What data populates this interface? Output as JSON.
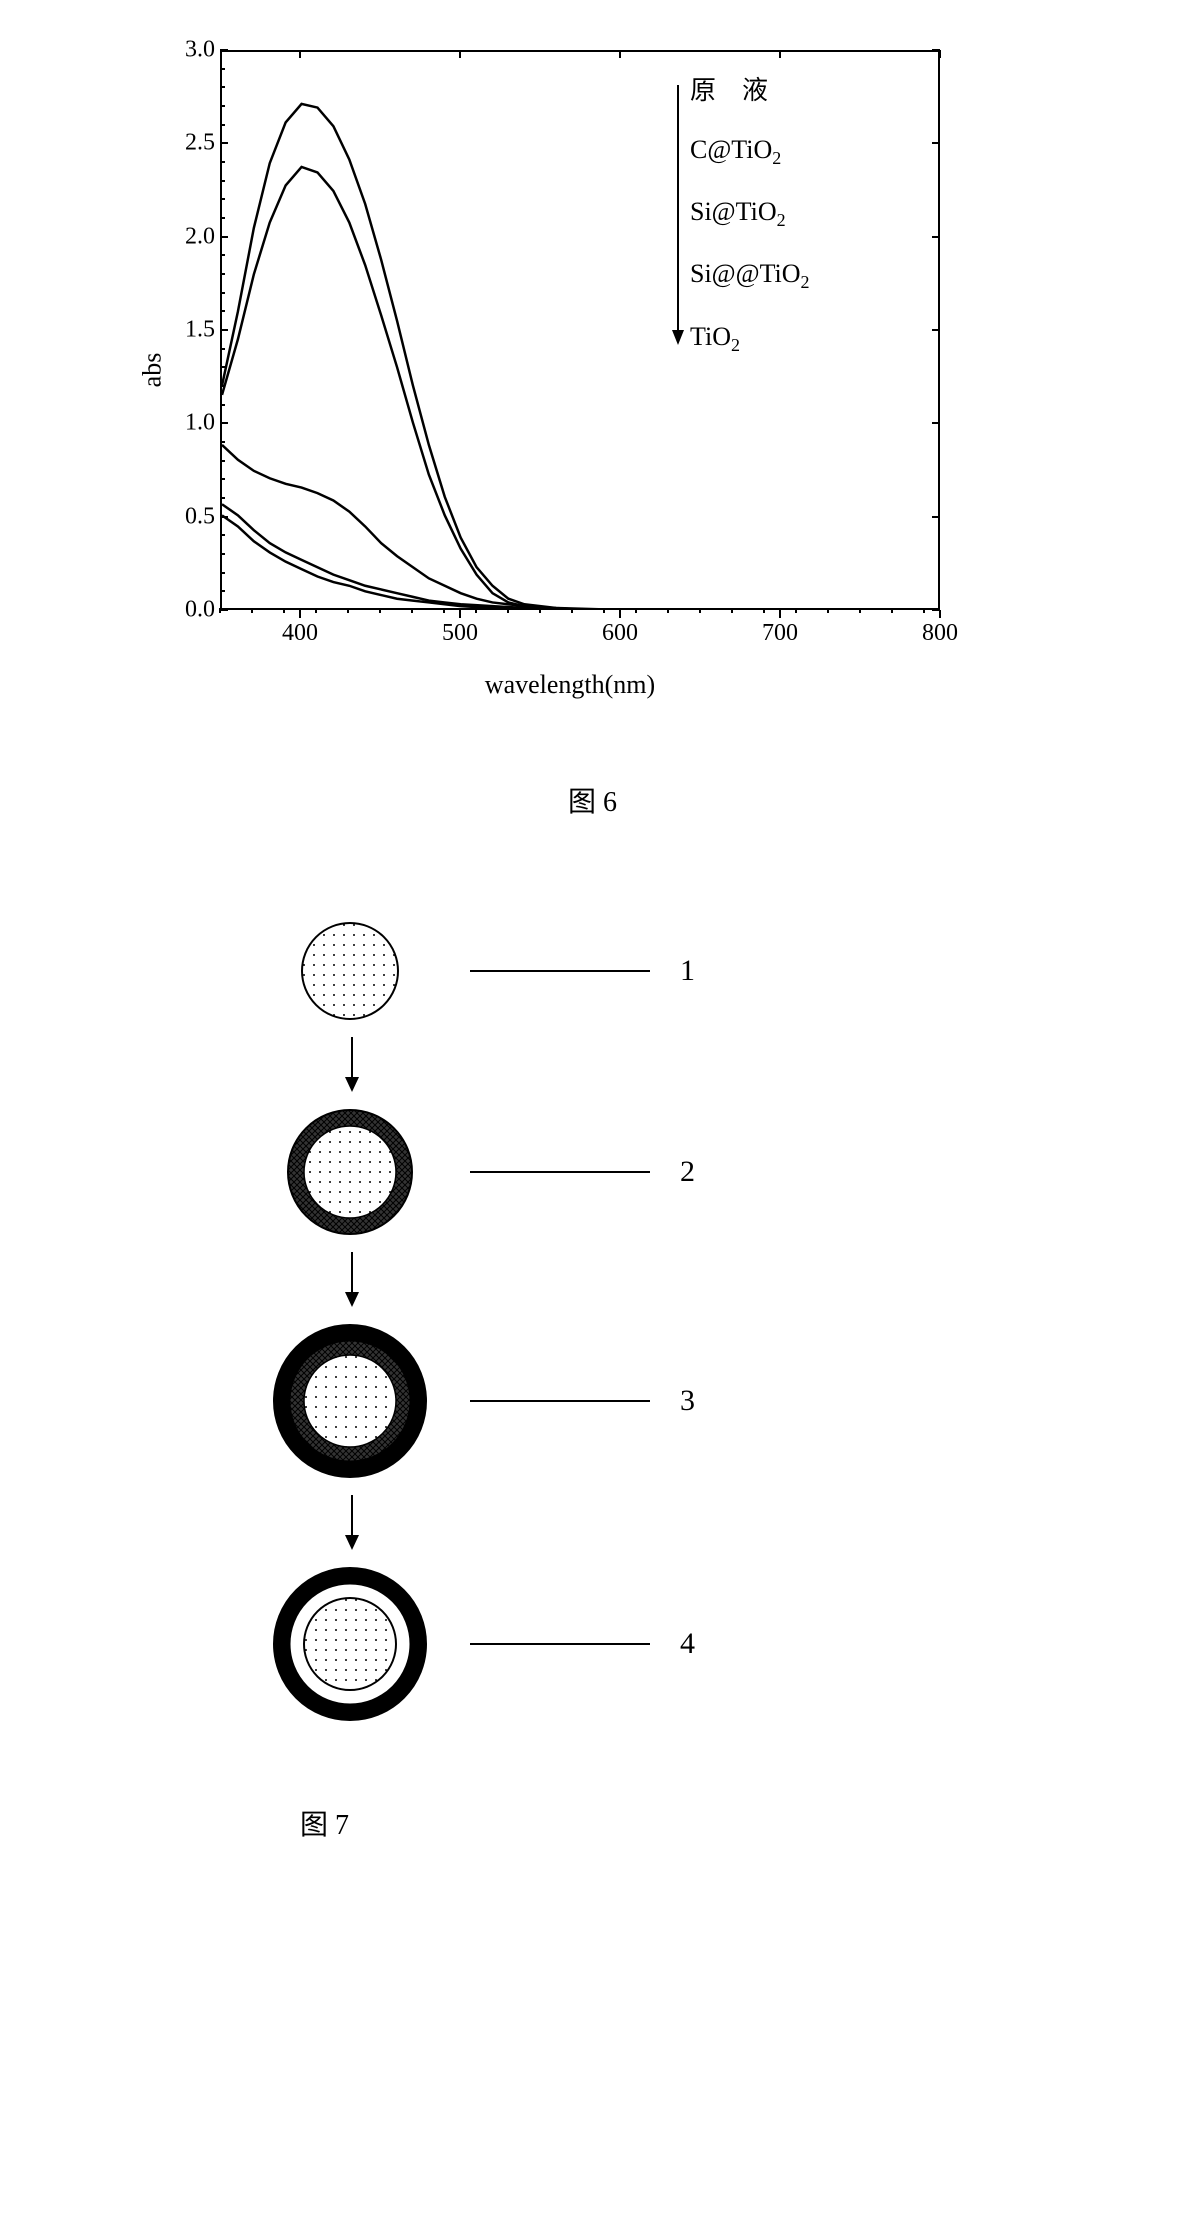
{
  "figure6": {
    "chart": {
      "type": "line",
      "xlabel": "wavelength(nm)",
      "ylabel": "abs",
      "label_fontsize": 26,
      "tick_fontsize": 24,
      "xlim": [
        350,
        800
      ],
      "ylim": [
        0.0,
        3.0
      ],
      "xticks": [
        400,
        500,
        600,
        700,
        800
      ],
      "yticks": [
        "0.0",
        "0.5",
        "1.0",
        "1.5",
        "2.0",
        "2.5",
        "3.0"
      ],
      "xtick_minor_step": 20,
      "ytick_minor_step": 0.1,
      "line_color": "#000000",
      "line_width": 2.5,
      "background_color": "#ffffff",
      "border_color": "#000000",
      "curves": [
        {
          "label": "原液",
          "points": [
            [
              350,
              1.2
            ],
            [
              360,
              1.6
            ],
            [
              370,
              2.05
            ],
            [
              380,
              2.4
            ],
            [
              390,
              2.62
            ],
            [
              400,
              2.72
            ],
            [
              410,
              2.7
            ],
            [
              420,
              2.6
            ],
            [
              430,
              2.42
            ],
            [
              440,
              2.18
            ],
            [
              450,
              1.88
            ],
            [
              460,
              1.55
            ],
            [
              470,
              1.2
            ],
            [
              480,
              0.88
            ],
            [
              490,
              0.6
            ],
            [
              500,
              0.38
            ],
            [
              510,
              0.22
            ],
            [
              520,
              0.12
            ],
            [
              530,
              0.05
            ],
            [
              540,
              0.02
            ],
            [
              560,
              0.0
            ],
            [
              600,
              -0.02
            ],
            [
              700,
              -0.03
            ],
            [
              800,
              -0.03
            ]
          ]
        },
        {
          "label": "C@TiO₂",
          "points": [
            [
              350,
              1.15
            ],
            [
              360,
              1.45
            ],
            [
              370,
              1.8
            ],
            [
              380,
              2.08
            ],
            [
              390,
              2.28
            ],
            [
              400,
              2.38
            ],
            [
              410,
              2.35
            ],
            [
              420,
              2.25
            ],
            [
              430,
              2.08
            ],
            [
              440,
              1.85
            ],
            [
              450,
              1.58
            ],
            [
              460,
              1.3
            ],
            [
              470,
              1.0
            ],
            [
              480,
              0.72
            ],
            [
              490,
              0.5
            ],
            [
              500,
              0.32
            ],
            [
              510,
              0.18
            ],
            [
              520,
              0.08
            ],
            [
              530,
              0.03
            ],
            [
              540,
              0.01
            ],
            [
              560,
              -0.01
            ],
            [
              600,
              -0.02
            ],
            [
              700,
              -0.03
            ],
            [
              800,
              -0.03
            ]
          ]
        },
        {
          "label": "Si@TiO₂",
          "points": [
            [
              350,
              0.88
            ],
            [
              360,
              0.8
            ],
            [
              370,
              0.74
            ],
            [
              380,
              0.7
            ],
            [
              390,
              0.67
            ],
            [
              400,
              0.65
            ],
            [
              410,
              0.62
            ],
            [
              420,
              0.58
            ],
            [
              430,
              0.52
            ],
            [
              440,
              0.44
            ],
            [
              450,
              0.35
            ],
            [
              460,
              0.28
            ],
            [
              470,
              0.22
            ],
            [
              480,
              0.16
            ],
            [
              490,
              0.12
            ],
            [
              500,
              0.08
            ],
            [
              510,
              0.05
            ],
            [
              520,
              0.03
            ],
            [
              540,
              0.01
            ],
            [
              560,
              0.0
            ],
            [
              600,
              -0.01
            ],
            [
              700,
              -0.02
            ],
            [
              800,
              -0.03
            ]
          ]
        },
        {
          "label": "Si@@TiO₂",
          "points": [
            [
              350,
              0.56
            ],
            [
              360,
              0.5
            ],
            [
              370,
              0.42
            ],
            [
              380,
              0.35
            ],
            [
              390,
              0.3
            ],
            [
              400,
              0.26
            ],
            [
              410,
              0.22
            ],
            [
              420,
              0.18
            ],
            [
              430,
              0.15
            ],
            [
              440,
              0.12
            ],
            [
              450,
              0.1
            ],
            [
              460,
              0.08
            ],
            [
              470,
              0.06
            ],
            [
              480,
              0.04
            ],
            [
              490,
              0.03
            ],
            [
              500,
              0.02
            ],
            [
              520,
              0.01
            ],
            [
              540,
              0.0
            ],
            [
              560,
              -0.01
            ],
            [
              600,
              -0.02
            ],
            [
              700,
              -0.03
            ],
            [
              800,
              -0.03
            ]
          ]
        },
        {
          "label": "TiO₂",
          "points": [
            [
              350,
              0.5
            ],
            [
              360,
              0.44
            ],
            [
              370,
              0.36
            ],
            [
              380,
              0.3
            ],
            [
              390,
              0.25
            ],
            [
              400,
              0.21
            ],
            [
              410,
              0.17
            ],
            [
              420,
              0.14
            ],
            [
              430,
              0.12
            ],
            [
              440,
              0.09
            ],
            [
              450,
              0.07
            ],
            [
              460,
              0.05
            ],
            [
              470,
              0.04
            ],
            [
              480,
              0.03
            ],
            [
              490,
              0.02
            ],
            [
              500,
              0.01
            ],
            [
              520,
              0.0
            ],
            [
              540,
              -0.01
            ],
            [
              560,
              -0.01
            ],
            [
              600,
              -0.02
            ],
            [
              700,
              -0.03
            ],
            [
              800,
              -0.03
            ]
          ]
        }
      ],
      "legend": {
        "items": [
          "原　液",
          "C@TiO₂",
          "Si@TiO₂",
          "Si@@TiO₂",
          "TiO₂"
        ],
        "arrow_direction": "down",
        "fontsize": 26
      }
    },
    "caption": "图 6"
  },
  "figure7": {
    "type": "flowchart",
    "stages": [
      {
        "number": "1",
        "layers": [
          {
            "type": "dotted",
            "radius": 48,
            "fill": "#ffffff",
            "stroke": "#000000",
            "stroke_width": 2
          }
        ]
      },
      {
        "number": "2",
        "layers": [
          {
            "type": "crosshatch",
            "radius": 62,
            "fill": "#555555",
            "stroke": "#000000",
            "stroke_width": 2
          },
          {
            "type": "dotted",
            "radius": 46,
            "fill": "#ffffff",
            "stroke": "#000000",
            "stroke_width": 1.5
          }
        ]
      },
      {
        "number": "3",
        "layers": [
          {
            "type": "solid",
            "radius": 76,
            "fill": "#000000",
            "stroke": "#000000",
            "stroke_width": 2
          },
          {
            "type": "crosshatch",
            "radius": 60,
            "fill": "#555555",
            "stroke": "#000000",
            "stroke_width": 1
          },
          {
            "type": "dotted",
            "radius": 46,
            "fill": "#ffffff",
            "stroke": "#000000",
            "stroke_width": 1.5
          }
        ]
      },
      {
        "number": "4",
        "layers": [
          {
            "type": "solid",
            "radius": 76,
            "fill": "#000000",
            "stroke": "#000000",
            "stroke_width": 2
          },
          {
            "type": "solid",
            "radius": 60,
            "fill": "#ffffff",
            "stroke": "#000000",
            "stroke_width": 1
          },
          {
            "type": "dotted",
            "radius": 46,
            "fill": "#ffffff",
            "stroke": "#000000",
            "stroke_width": 2
          }
        ]
      }
    ],
    "arrow_color": "#000000",
    "line_color": "#000000",
    "number_fontsize": 30,
    "caption": "图 7"
  }
}
